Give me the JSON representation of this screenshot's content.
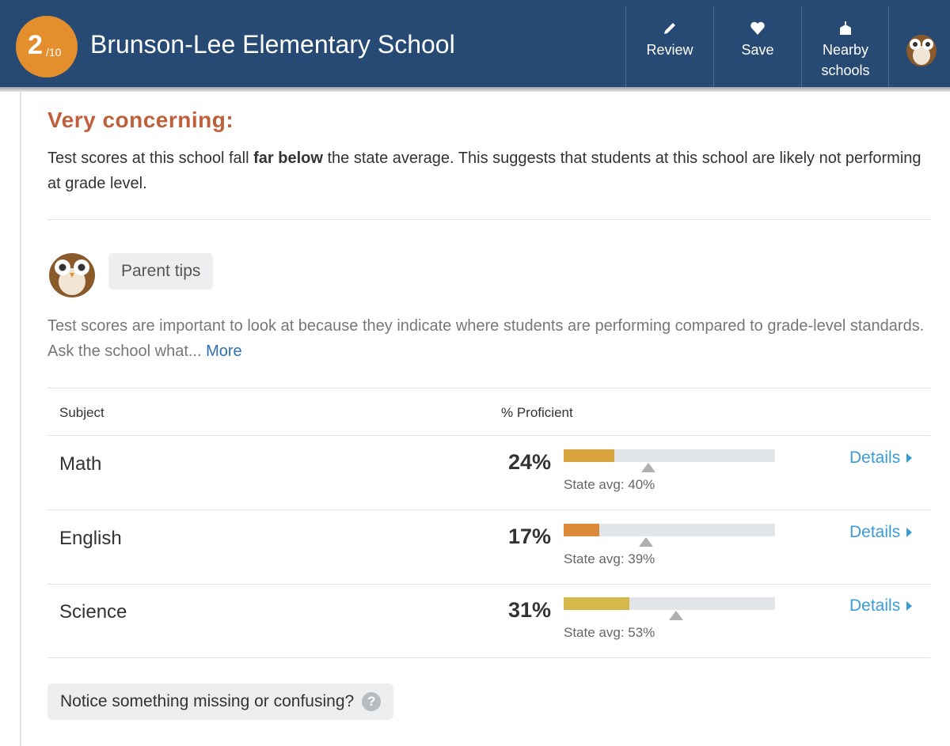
{
  "header": {
    "rating": "2",
    "rating_scale": "/10",
    "title": "Brunson-Lee Elementary School",
    "actions": [
      "Review",
      "Save",
      "Nearby schools"
    ]
  },
  "summary": {
    "heading": "Very concerning:",
    "text_before": "Test scores at this school fall",
    "text_bold": "far below",
    "text_after": "the state average. This suggests that students at this school are likely not performing at grade level."
  },
  "tips": {
    "label": "Parent tips",
    "text": "Test scores are important to look at because they indicate where students are performing compared to grade-level standards. Ask the school what...",
    "more": "More"
  },
  "table": {
    "headers": [
      "Subject",
      "% Proficient"
    ],
    "bar_range": [
      0,
      100
    ],
    "rows": [
      {
        "subject": "Math",
        "value": 24,
        "value_label": "24%",
        "state_avg": 40,
        "state_avg_label": "State avg: 40%",
        "color": "#d9a53e",
        "link": "Details"
      },
      {
        "subject": "English",
        "value": 17,
        "value_label": "17%",
        "state_avg": 39,
        "state_avg_label": "State avg: 39%",
        "color": "#dc8a3a",
        "link": "Details"
      },
      {
        "subject": "Science",
        "value": 31,
        "value_label": "31%",
        "state_avg": 53,
        "state_avg_label": "State avg: 53%",
        "color": "#d4b84a",
        "link": "Details"
      }
    ]
  },
  "feedback": {
    "text": "Notice something missing or confusing?",
    "icon": "?"
  }
}
